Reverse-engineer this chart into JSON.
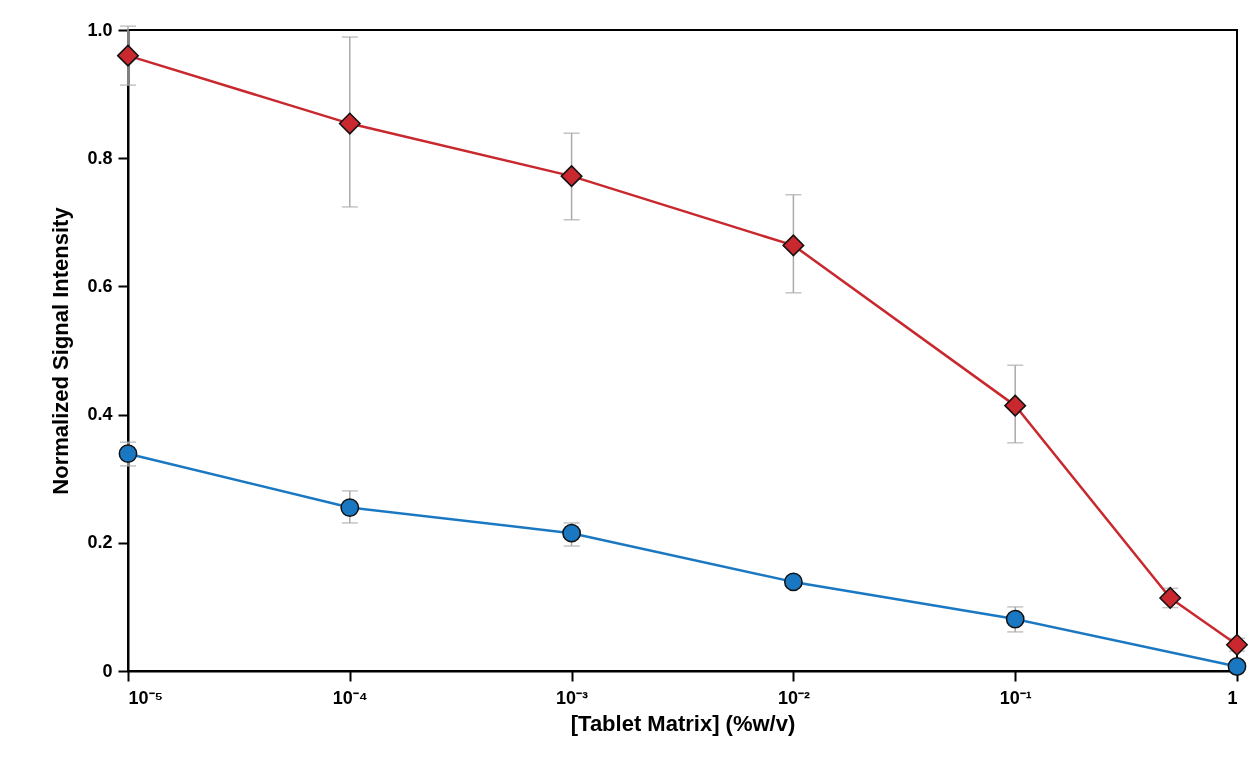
{
  "chart_data": {
    "type": "line",
    "xlabel": "[Tablet Matrix] (%w/v)",
    "ylabel": "Normalized Signal Intensity",
    "x": [
      1e-05,
      0.0001,
      0.001,
      0.01,
      0.1,
      0.5,
      1
    ],
    "log": "x",
    "xlim": [
      1e-05,
      1
    ],
    "xticks": [
      {
        "value": 1e-05,
        "label": "10⁻⁵"
      },
      {
        "value": 0.0001,
        "label": "10⁻⁴"
      },
      {
        "value": 0.001,
        "label": "10⁻³"
      },
      {
        "value": 0.01,
        "label": "10⁻²"
      },
      {
        "value": 0.1,
        "label": "10⁻¹"
      },
      1
    ],
    "ylim": [
      0,
      1
    ],
    "yticks": [
      0,
      0.2,
      0.4,
      0.6,
      0.8,
      {
        "value": 1,
        "label": "1.0"
      }
    ],
    "grid": false,
    "line_style": "solid",
    "series": [
      {
        "color": "#c8282e",
        "marker": "diamond",
        "values": [
          0.96,
          0.854,
          0.772,
          0.664,
          0.414,
          0.114,
          0.041
        ],
        "errors": [
          0.046,
          [
            0.724,
            0.989
          ],
          [
            0.704,
            0.839
          ],
          [
            0.59,
            0.743
          ],
          [
            0.356,
            0.477
          ],
          0.015,
          0.01
        ]
      },
      {
        "color": "#1a78c2",
        "marker": "circle",
        "values": [
          0.339,
          0.255,
          0.215,
          0.139,
          0.081,
          0.007
        ],
        "x": [
          1e-05,
          0.0001,
          0.001,
          0.01,
          0.1,
          1
        ],
        "errors": [
          [
            0.32,
            0.357
          ],
          [
            0.231,
            0.281
          ],
          [
            0.195,
            0.231
          ],
          null,
          [
            0.061,
            0.1
          ],
          null
        ]
      }
    ]
  }
}
